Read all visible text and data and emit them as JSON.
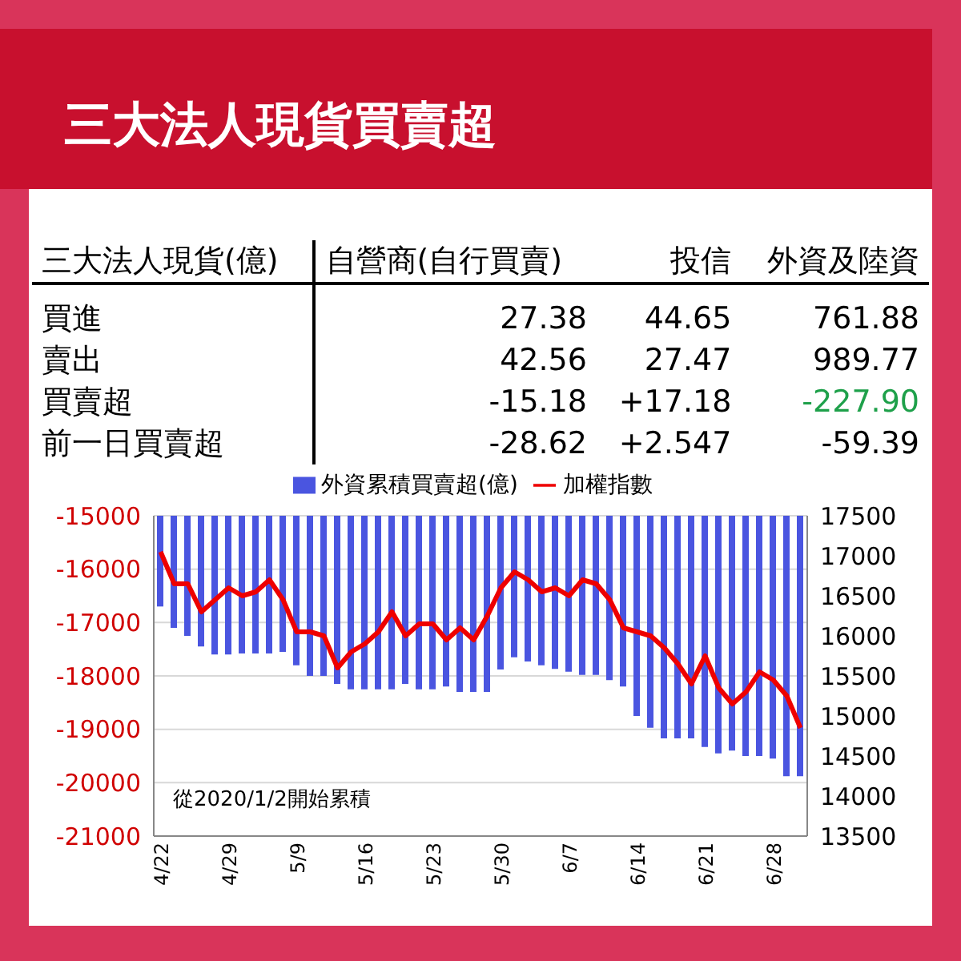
{
  "chart_data": [
    {
      "type": "other",
      "title": "三大法人現貨買賣超",
      "xlabel": "三大法人現貨(億)",
      "categories": [
        "買進",
        "賣出",
        "買賣超",
        "前一日買賣超"
      ],
      "series": [
        {
          "name": "自營商(自行買賣)",
          "values": [
            27.38,
            42.56,
            -15.18,
            -28.62
          ]
        },
        {
          "name": "投信",
          "values": [
            44.65,
            27.47,
            17.18,
            2.547
          ],
          "value_labels": [
            "44.65",
            "27.47",
            "+17.18",
            "+2.547"
          ]
        },
        {
          "name": "外資及陸資",
          "values": [
            761.88,
            989.77,
            -227.9,
            -59.39
          ],
          "value_labels": [
            "761.88",
            "989.77",
            "-227.90",
            "-59.39"
          ],
          "colors": [
            "#000000",
            "#000000",
            "#1ea04a",
            "#000000"
          ]
        }
      ],
      "data_labels": true
    },
    {
      "type": "bar",
      "categories": [
        "4/22",
        null,
        null,
        null,
        null,
        "4/29",
        null,
        null,
        null,
        null,
        "5/9",
        null,
        null,
        null,
        null,
        "5/16",
        null,
        null,
        null,
        null,
        "5/23",
        null,
        null,
        null,
        null,
        "5/30",
        null,
        null,
        null,
        null,
        "6/7",
        null,
        null,
        null,
        null,
        "6/14",
        null,
        null,
        null,
        null,
        "6/21",
        null,
        null,
        null,
        null,
        "6/28",
        null,
        null
      ],
      "series": [
        {
          "name": "外資累積買賣超(億)",
          "type": "bar",
          "color": "#4a55e0",
          "values": [
            -16700,
            -17100,
            -17250,
            -17450,
            -17600,
            -17600,
            -17580,
            -17580,
            -17580,
            -17550,
            -17800,
            -18000,
            -18000,
            -18150,
            -18250,
            -18250,
            -18250,
            -18250,
            -18150,
            -18250,
            -18250,
            -18200,
            -18300,
            -18300,
            -18300,
            -17880,
            -17650,
            -17730,
            -17800,
            -17870,
            -17920,
            -17980,
            -17980,
            -18080,
            -18200,
            -18750,
            -18970,
            -19170,
            -19170,
            -19170,
            -19330,
            -19450,
            -19400,
            -19500,
            -19500,
            -19550,
            -19880,
            -19880
          ]
        },
        {
          "name": "加權指數",
          "type": "line",
          "axis": "y2",
          "color": "#ee0000",
          "values": [
            17050,
            16650,
            16650,
            16300,
            16450,
            16600,
            16500,
            16550,
            16700,
            16450,
            16050,
            16050,
            16000,
            15600,
            15800,
            15900,
            16050,
            16300,
            16000,
            16150,
            16150,
            15950,
            16100,
            15950,
            16250,
            16600,
            16800,
            16700,
            16550,
            16600,
            16500,
            16700,
            16650,
            16450,
            16100,
            16050,
            16000,
            15850,
            15650,
            15400,
            15750,
            15350,
            15150,
            15300,
            15550,
            15450,
            15250,
            14850
          ]
        }
      ],
      "ylim": [
        -21000,
        -15000
      ],
      "yticks": [
        -21000,
        -20000,
        -19000,
        -18000,
        -17000,
        -16000,
        -15000
      ],
      "y2lim": [
        13500,
        17500
      ],
      "y2ticks": [
        13500,
        14000,
        14500,
        15000,
        15500,
        16000,
        16500,
        17000,
        17500
      ],
      "grid": "y",
      "legend": "top",
      "marker": "none",
      "annotations": [
        "從2020/1/2開始累積"
      ]
    }
  ]
}
